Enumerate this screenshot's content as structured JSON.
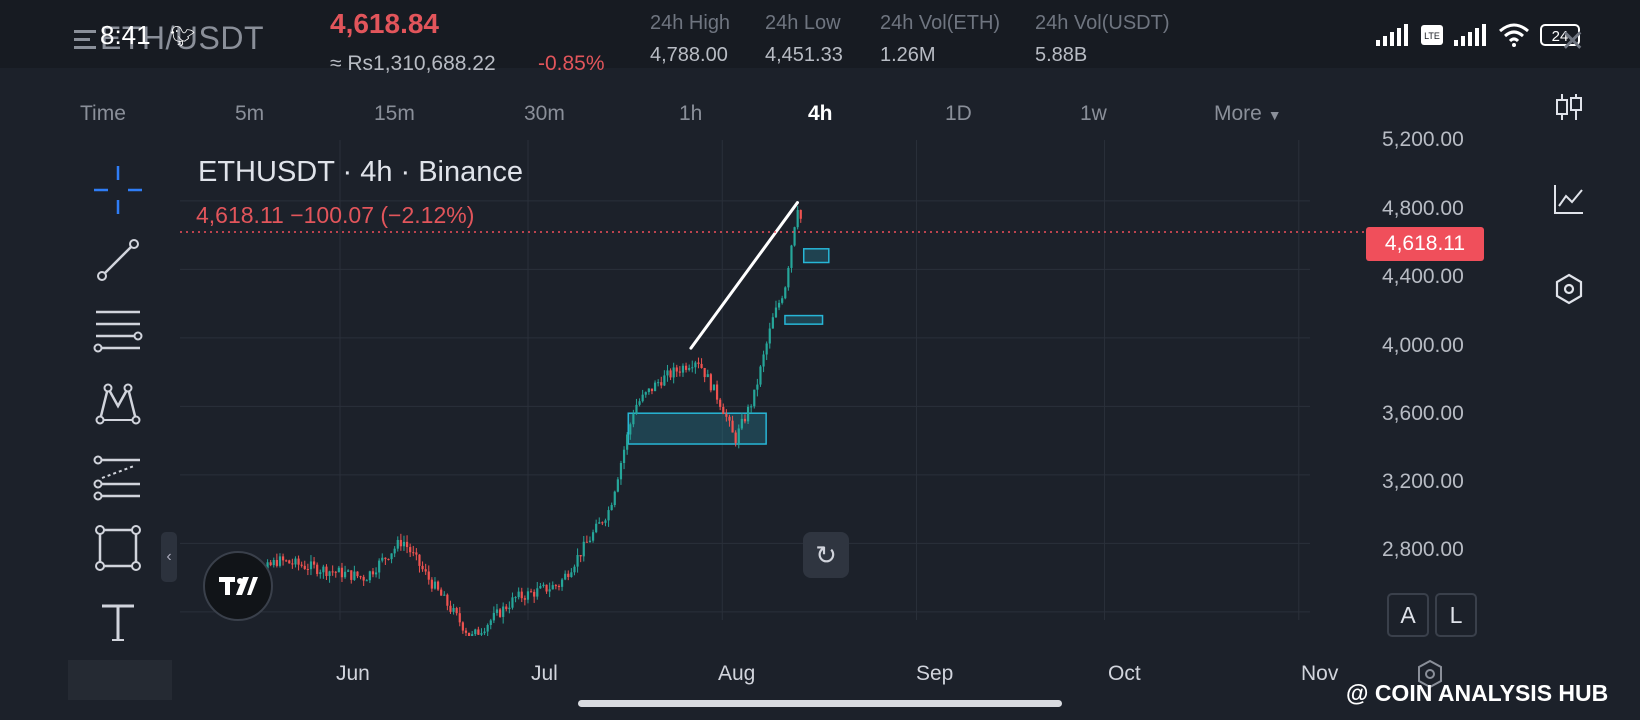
{
  "status": {
    "time": "8:41",
    "battery": "24"
  },
  "ticker": {
    "pair": "ETH/USDT",
    "last_price": "4,618.84",
    "fiat_price": "≈ Rs1,310,688.22",
    "change_pct": "-0.85%",
    "stats": [
      {
        "label": "24h High",
        "value": "4,788.00"
      },
      {
        "label": "24h Low",
        "value": "4,451.33"
      },
      {
        "label": "24h Vol(ETH)",
        "value": "1.26M"
      },
      {
        "label": "24h Vol(USDT)",
        "value": "5.88B"
      }
    ]
  },
  "timeframes": [
    "Time",
    "5m",
    "15m",
    "30m",
    "1h",
    "4h",
    "1D",
    "1w",
    "More"
  ],
  "active_timeframe": "4h",
  "chart": {
    "title": "ETHUSDT · 4h · Binance",
    "quote": "4,618.11  −100.07 (−2.12%)",
    "current_price_badge": "4,618.11",
    "scale_buttons": [
      "A",
      "L"
    ]
  },
  "chart_data": {
    "type": "candlestick",
    "symbol": "ETHUSDT",
    "interval": "4h",
    "exchange": "Binance",
    "y_ticks": [
      "5,200.00",
      "4,800.00",
      "4,400.00",
      "4,000.00",
      "3,600.00",
      "3,200.00",
      "2,800.00"
    ],
    "x_ticks": [
      "Jun",
      "Jul",
      "Aug",
      "Sep",
      "Oct",
      "Nov"
    ],
    "ylim": [
      2400,
      5200
    ],
    "current_price": 4618.11,
    "approx_path": [
      {
        "date": "May 15",
        "price": 2500
      },
      {
        "date": "May 22",
        "price": 2700
      },
      {
        "date": "May 29",
        "price": 2650
      },
      {
        "date": "Jun 5",
        "price": 2600
      },
      {
        "date": "Jun 11",
        "price": 2820
      },
      {
        "date": "Jun 15",
        "price": 2600
      },
      {
        "date": "Jun 22",
        "price": 2250
      },
      {
        "date": "Jun 29",
        "price": 2480
      },
      {
        "date": "Jul 6",
        "price": 2560
      },
      {
        "date": "Jul 10",
        "price": 2780
      },
      {
        "date": "Jul 14",
        "price": 3000
      },
      {
        "date": "Jul 18",
        "price": 3600
      },
      {
        "date": "Jul 22",
        "price": 3750
      },
      {
        "date": "Jul 28",
        "price": 3880
      },
      {
        "date": "Aug 1",
        "price": 3600
      },
      {
        "date": "Aug 3",
        "price": 3400
      },
      {
        "date": "Aug 6",
        "price": 3650
      },
      {
        "date": "Aug 9",
        "price": 4100
      },
      {
        "date": "Aug 11",
        "price": 4300
      },
      {
        "date": "Aug 13",
        "price": 4780
      },
      {
        "date": "Aug 14",
        "price": 4618
      }
    ],
    "drawn_trendline": {
      "from": {
        "date": "Jul 27",
        "price": 3940
      },
      "to": {
        "date": "Aug 13",
        "price": 4790
      }
    },
    "zones": [
      {
        "from": "Jul 17",
        "to": "Aug 8",
        "low": 3380,
        "high": 3560
      },
      {
        "from": "Aug 11",
        "to": "Aug 17",
        "low": 4080,
        "high": 4130
      },
      {
        "from": "Aug 14",
        "to": "Aug 18",
        "low": 4440,
        "high": 4520
      }
    ]
  },
  "tools": [
    "crosshair-tool",
    "trendline-tool",
    "fib-tool",
    "pattern-tool",
    "prediction-tool",
    "shape-tool",
    "text-tool"
  ],
  "watermark": "@ COIN ANALYSIS HUB"
}
